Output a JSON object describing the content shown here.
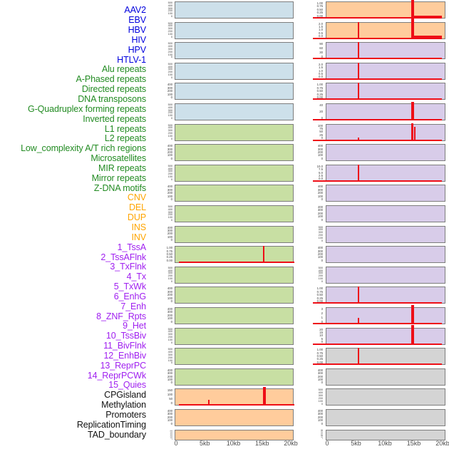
{
  "chart_data": {
    "type": "area",
    "title": "",
    "description_visible": "Two columns of per-track signal mini-plots over a 0-20kb window with red signal spikes",
    "x_axis": {
      "tick_labels": [
        "0",
        "5kb",
        "10kb",
        "15kb",
        "20kb"
      ],
      "unit": "kb",
      "range": [
        0,
        20
      ]
    },
    "signal_color": "#ee0e17",
    "groups": {
      "virus": {
        "label_color": "#0000dd",
        "plot_bg": "#cde0ea"
      },
      "repeats": {
        "label_color": "#228b22",
        "plot_bg": "#c8dfa3"
      },
      "structural_variant": {
        "label_color": "#ffa500",
        "plot_bg": "#ffcc9c"
      },
      "chromatin_state": {
        "label_color": "#a020f0",
        "plot_bg": "#d8cce9"
      },
      "other": {
        "label_color": "#111111",
        "plot_bg": "#d4d4d4"
      }
    },
    "tracks": [
      {
        "label": "AAV2",
        "group": "virus",
        "column": 0,
        "yticks": [
          "500",
          "400",
          "300",
          "200",
          "100",
          "0"
        ],
        "baseline": false,
        "spikes": []
      },
      {
        "label": "EBV",
        "group": "virus",
        "column": 0,
        "yticks": [
          "500",
          "400",
          "300",
          "200",
          "100",
          "0"
        ],
        "baseline": false,
        "spikes": []
      },
      {
        "label": "HBV",
        "group": "virus",
        "column": 0,
        "yticks": [
          "500",
          "400",
          "300",
          "200",
          "100",
          "0"
        ],
        "baseline": false,
        "spikes": []
      },
      {
        "label": "HIV",
        "group": "virus",
        "column": 0,
        "yticks": [
          "500",
          "400",
          "300",
          "200",
          "100",
          "0"
        ],
        "baseline": false,
        "spikes": []
      },
      {
        "label": "HPV",
        "group": "virus",
        "column": 0,
        "yticks": [
          "400",
          "300",
          "200",
          "100",
          "0"
        ],
        "baseline": false,
        "spikes": []
      },
      {
        "label": "HTLV-1",
        "group": "virus",
        "column": 0,
        "yticks": [
          "500",
          "400",
          "300",
          "200",
          "100",
          "0"
        ],
        "baseline": false,
        "spikes": []
      },
      {
        "label": "Alu repeats",
        "group": "repeats",
        "column": 0,
        "yticks": [
          "500",
          "400",
          "300",
          "200",
          "100",
          "0"
        ],
        "baseline": false,
        "spikes": []
      },
      {
        "label": "A-Phased repeats",
        "group": "repeats",
        "column": 0,
        "yticks": [
          "400",
          "300",
          "200",
          "100",
          "0"
        ],
        "baseline": false,
        "spikes": []
      },
      {
        "label": "Directed repeats",
        "group": "repeats",
        "column": 0,
        "yticks": [
          "500",
          "400",
          "300",
          "200",
          "100",
          "0"
        ],
        "baseline": false,
        "spikes": []
      },
      {
        "label": "DNA transposons",
        "group": "repeats",
        "column": 0,
        "yticks": [
          "400",
          "300",
          "200",
          "100",
          "0"
        ],
        "baseline": false,
        "spikes": []
      },
      {
        "label": "G-Quadruplex forming repeats",
        "group": "repeats",
        "column": 0,
        "yticks": [
          "500",
          "400",
          "300",
          "200",
          "100",
          "0"
        ],
        "baseline": false,
        "spikes": []
      },
      {
        "label": "Inverted repeats",
        "group": "repeats",
        "column": 0,
        "yticks": [
          "400",
          "300",
          "200",
          "100",
          "0"
        ],
        "baseline": false,
        "spikes": []
      },
      {
        "label": "L1 repeats",
        "group": "repeats",
        "column": 0,
        "yticks": [
          "1.00",
          "0.75",
          "0.50",
          "0.25",
          "0.00"
        ],
        "baseline": true,
        "spikes": [
          {
            "x_kb": 14.9,
            "h": 1.0,
            "w": 2
          }
        ]
      },
      {
        "label": "L2 repeats",
        "group": "repeats",
        "column": 0,
        "yticks": [
          "500",
          "400",
          "300",
          "200",
          "100",
          "0"
        ],
        "baseline": false,
        "spikes": []
      },
      {
        "label": "Low_complexity A/T rich regions",
        "group": "repeats",
        "column": 0,
        "yticks": [
          "400",
          "300",
          "200",
          "100",
          "0"
        ],
        "baseline": false,
        "spikes": []
      },
      {
        "label": "Microsatellites",
        "group": "repeats",
        "column": 0,
        "yticks": [
          "400",
          "300",
          "200",
          "100",
          "0"
        ],
        "baseline": false,
        "spikes": []
      },
      {
        "label": "MIR repeats",
        "group": "repeats",
        "column": 0,
        "yticks": [
          "500",
          "400",
          "300",
          "200",
          "100",
          "0"
        ],
        "baseline": false,
        "spikes": []
      },
      {
        "label": "Mirror repeats",
        "group": "repeats",
        "column": 0,
        "yticks": [
          "500",
          "400",
          "300",
          "200",
          "100",
          "0"
        ],
        "baseline": false,
        "spikes": []
      },
      {
        "label": "Z-DNA motifs",
        "group": "repeats",
        "column": 0,
        "yticks": [
          "400",
          "300",
          "200",
          "100",
          "0"
        ],
        "baseline": false,
        "spikes": []
      },
      {
        "label": "CNV",
        "group": "structural_variant",
        "column": 0,
        "yticks": [
          "150",
          "100",
          "50",
          "0"
        ],
        "baseline": true,
        "spikes": [
          {
            "x_kb": 5.6,
            "h": 0.27,
            "w": 2
          },
          {
            "x_kb": 15.0,
            "h": 1.12,
            "w": 4
          }
        ]
      },
      {
        "label": "DEL",
        "group": "structural_variant",
        "column": 0,
        "yticks": [
          "400",
          "300",
          "200",
          "100",
          "0"
        ],
        "baseline": false,
        "spikes": []
      },
      {
        "label": "DUP",
        "group": "structural_variant",
        "column": 0,
        "yticks": [
          "600",
          "500",
          "400",
          "300",
          "200",
          "100",
          "0"
        ],
        "baseline": false,
        "spikes": []
      },
      {
        "label": "INS",
        "group": "structural_variant",
        "column": 1,
        "yticks": [
          "1.00",
          "0.75",
          "0.50",
          "0.25",
          "0.00"
        ],
        "baseline": true,
        "spikes": [
          {
            "x_kb": 14.4,
            "h": 1.2,
            "w": 4
          },
          {
            "x_kb": 16.9,
            "h": 0.1,
            "w": 41
          }
        ]
      },
      {
        "label": "INV",
        "group": "structural_variant",
        "column": 1,
        "yticks": [
          "2.0",
          "1.5",
          "1.0",
          "0.5",
          "0.0"
        ],
        "baseline": true,
        "spikes": [
          {
            "x_kb": 5.4,
            "h": 1.0,
            "w": 2
          },
          {
            "x_kb": 14.4,
            "h": 1.2,
            "w": 4
          },
          {
            "x_kb": 16.9,
            "h": 0.1,
            "w": 41
          }
        ]
      },
      {
        "label": "1_TssA",
        "group": "chromatin_state",
        "column": 1,
        "yticks": [
          "90",
          "60",
          "30",
          "0"
        ],
        "baseline": true,
        "spikes": [
          {
            "x_kb": 5.4,
            "h": 1.0,
            "w": 2
          }
        ]
      },
      {
        "label": "2_TssAFlnk",
        "group": "chromatin_state",
        "column": 1,
        "yticks": [
          "2.0",
          "1.5",
          "1.0",
          "0.5",
          "0.0"
        ],
        "baseline": true,
        "spikes": [
          {
            "x_kb": 5.4,
            "h": 1.0,
            "w": 2
          }
        ]
      },
      {
        "label": "3_TxFlnk",
        "group": "chromatin_state",
        "column": 1,
        "yticks": [
          "1.00",
          "0.75",
          "0.50",
          "0.25",
          "0.00"
        ],
        "baseline": true,
        "spikes": [
          {
            "x_kb": 5.4,
            "h": 1.0,
            "w": 2
          }
        ]
      },
      {
        "label": "4_Tx",
        "group": "chromatin_state",
        "column": 1,
        "yticks": [
          "40",
          "20",
          "0"
        ],
        "baseline": true,
        "spikes": [
          {
            "x_kb": 14.4,
            "h": 1.1,
            "w": 4
          }
        ]
      },
      {
        "label": "5_TxWk",
        "group": "chromatin_state",
        "column": 1,
        "yticks": [
          "100",
          "75",
          "50",
          "25",
          "0"
        ],
        "baseline": true,
        "spikes": [
          {
            "x_kb": 5.4,
            "h": 0.12,
            "w": 2
          },
          {
            "x_kb": 14.3,
            "h": 1.05,
            "w": 3
          },
          {
            "x_kb": 14.75,
            "h": 0.8,
            "w": 2
          }
        ]
      },
      {
        "label": "6_EnhG",
        "group": "chromatin_state",
        "column": 1,
        "yticks": [
          "400",
          "300",
          "200",
          "100",
          "0"
        ],
        "baseline": false,
        "spikes": []
      },
      {
        "label": "7_Enh",
        "group": "chromatin_state",
        "column": 1,
        "yticks": [
          "10.0",
          "7.5",
          "5.0",
          "2.5",
          "0.0"
        ],
        "baseline": true,
        "spikes": [
          {
            "x_kb": 5.4,
            "h": 1.0,
            "w": 2
          }
        ]
      },
      {
        "label": "8_ZNF_Rpts",
        "group": "chromatin_state",
        "column": 1,
        "yticks": [
          "400",
          "300",
          "200",
          "100",
          "0"
        ],
        "baseline": false,
        "spikes": []
      },
      {
        "label": "9_Het",
        "group": "chromatin_state",
        "column": 1,
        "yticks": [
          "400",
          "300",
          "200",
          "100",
          "0"
        ],
        "baseline": false,
        "spikes": []
      },
      {
        "label": "10_TssBiv",
        "group": "chromatin_state",
        "column": 1,
        "yticks": [
          "500",
          "400",
          "300",
          "200",
          "100",
          "0"
        ],
        "baseline": false,
        "spikes": []
      },
      {
        "label": "11_BivFlnk",
        "group": "chromatin_state",
        "column": 1,
        "yticks": [
          "400",
          "300",
          "200",
          "100",
          "0"
        ],
        "baseline": false,
        "spikes": []
      },
      {
        "label": "12_EnhBiv",
        "group": "chromatin_state",
        "column": 1,
        "yticks": [
          "500",
          "400",
          "300",
          "200",
          "100",
          "0"
        ],
        "baseline": false,
        "spikes": []
      },
      {
        "label": "13_ReprPC",
        "group": "chromatin_state",
        "column": 1,
        "yticks": [
          "1.00",
          "0.75",
          "0.50",
          "0.25",
          "0.00"
        ],
        "baseline": true,
        "spikes": [
          {
            "x_kb": 5.4,
            "h": 1.0,
            "w": 2
          }
        ]
      },
      {
        "label": "14_ReprPCWk",
        "group": "chromatin_state",
        "column": 1,
        "yticks": [
          "3",
          "2",
          "1",
          "0"
        ],
        "baseline": true,
        "spikes": [
          {
            "x_kb": 5.4,
            "h": 0.33,
            "w": 2
          },
          {
            "x_kb": 14.4,
            "h": 1.15,
            "w": 4
          }
        ]
      },
      {
        "label": "15_Quies",
        "group": "chromatin_state",
        "column": 1,
        "yticks": [
          "20",
          "15",
          "10",
          "5",
          "0"
        ],
        "baseline": true,
        "spikes": [
          {
            "x_kb": 14.4,
            "h": 1.15,
            "w": 4
          }
        ]
      },
      {
        "label": "CPGisland",
        "group": "other",
        "column": 1,
        "yticks": [
          "1.00",
          "0.75",
          "0.50",
          "0.25",
          "0.00"
        ],
        "baseline": true,
        "spikes": [
          {
            "x_kb": 5.4,
            "h": 1.0,
            "w": 2
          }
        ]
      },
      {
        "label": "Methylation",
        "group": "other",
        "column": 1,
        "yticks": [
          "400",
          "300",
          "200",
          "100",
          "0"
        ],
        "baseline": false,
        "spikes": []
      },
      {
        "label": "Promoters",
        "group": "other",
        "column": 1,
        "yticks": [
          "500",
          "400",
          "300",
          "200",
          "100",
          "0"
        ],
        "baseline": false,
        "spikes": []
      },
      {
        "label": "ReplicationTiming",
        "group": "other",
        "column": 1,
        "yticks": [
          "400",
          "300",
          "200",
          "100",
          "0"
        ],
        "baseline": false,
        "spikes": []
      },
      {
        "label": "TAD_boundary",
        "group": "other",
        "column": 1,
        "yticks": [
          "700",
          "600",
          "500",
          "400",
          "300",
          "200",
          "100",
          "0"
        ],
        "baseline": false,
        "spikes": []
      }
    ]
  }
}
